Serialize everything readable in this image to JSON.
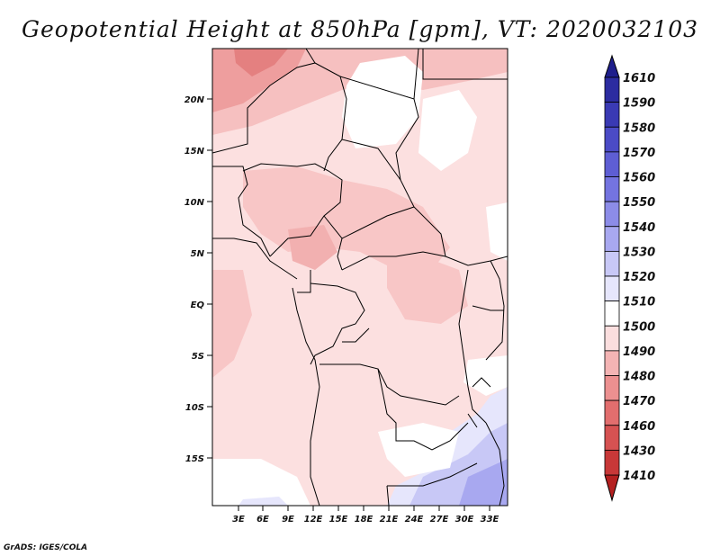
{
  "title": "Geopotential Height at 850hPa [gpm], VT: 2020032103",
  "credit": "GrADS: IGES/COLA",
  "lat_labels": [
    "20N",
    "15N",
    "10N",
    "5N",
    "EQ",
    "5S",
    "10S",
    "15S"
  ],
  "lon_labels": [
    "3E",
    "6E",
    "9E",
    "12E",
    "15E",
    "18E",
    "21E",
    "24E",
    "27E",
    "30E",
    "33E"
  ],
  "colorbar": {
    "labels": [
      "1610",
      "1590",
      "1580",
      "1570",
      "1560",
      "1550",
      "1540",
      "1530",
      "1520",
      "1510",
      "1500",
      "1490",
      "1480",
      "1470",
      "1460",
      "1430",
      "1410"
    ],
    "colors": [
      "#1e1e8c",
      "#2c2ca0",
      "#3a3ab4",
      "#4b4bc6",
      "#5e5ed4",
      "#7474e0",
      "#8c8ce8",
      "#a8a8f0",
      "#c8c8f6",
      "#e6e6fc",
      "#ffffff",
      "#fbdede",
      "#f4b4b4",
      "#ec9090",
      "#e26e6e",
      "#d65252",
      "#c83838",
      "#b42020"
    ]
  },
  "map": {
    "lon_range": [
      0,
      34
    ],
    "lat_range": [
      -20,
      25
    ],
    "region": "Central Africa"
  }
}
